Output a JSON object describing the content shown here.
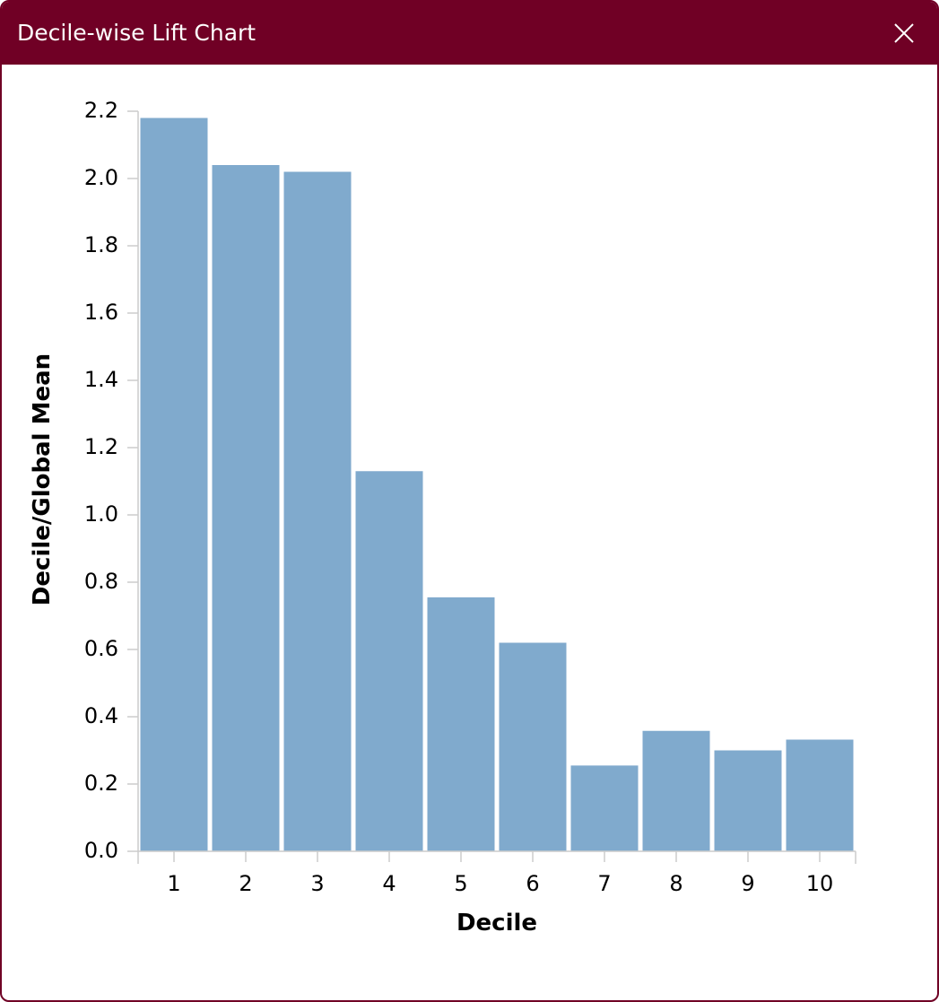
{
  "window": {
    "title": "Decile-wise Lift Chart",
    "close_icon": "close-icon",
    "accent_color": "#700025"
  },
  "chart_data": {
    "type": "bar",
    "categories": [
      "1",
      "2",
      "3",
      "4",
      "5",
      "6",
      "7",
      "8",
      "9",
      "10"
    ],
    "values": [
      2.18,
      2.04,
      2.02,
      1.13,
      0.755,
      0.62,
      0.255,
      0.358,
      0.3,
      0.332
    ],
    "title": "",
    "xlabel": "Decile",
    "ylabel": "Decile/Global Mean",
    "ylim": [
      0,
      2.2
    ],
    "yticks": [
      "0.0",
      "0.2",
      "0.4",
      "0.6",
      "0.8",
      "1.0",
      "1.2",
      "1.4",
      "1.6",
      "1.8",
      "2.0",
      "2.2"
    ],
    "bar_color": "#80aacd",
    "axis_color": "#cccccc",
    "grid": false,
    "legend": "none"
  }
}
